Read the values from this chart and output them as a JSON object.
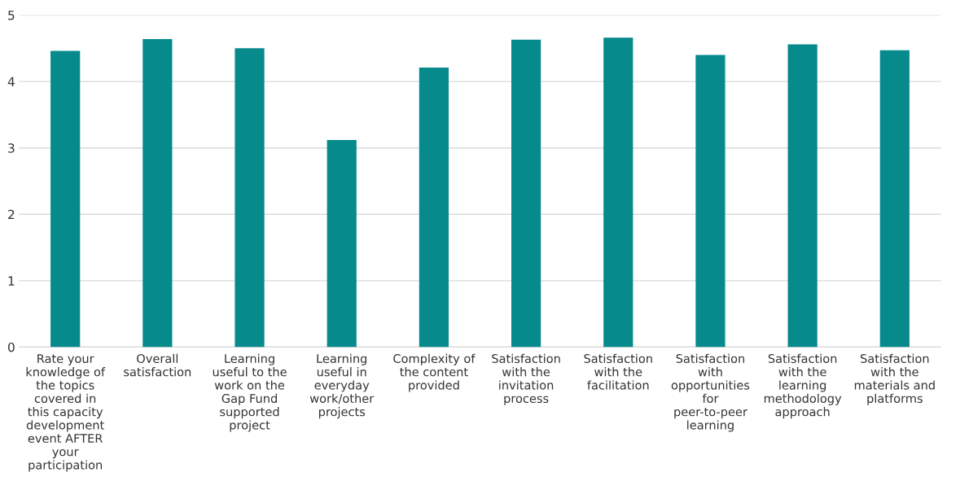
{
  "chart_data": {
    "type": "bar",
    "categories": [
      "Rate your knowledge of the topics covered in this capacity development event AFTER your participation",
      "Overall satisfaction",
      "Learning useful to the work on the Gap Fund supported project",
      "Learning useful in everyday work/other projects",
      "Complexity of the content provided",
      "Satisfaction with the invitation process",
      "Satisfaction with the facilitation",
      "Satisfaction with opportunities for peer-to-peer learning",
      "Satisfaction with the learning methodology approach",
      "Satisfaction with the materials and platforms"
    ],
    "values": [
      4.46,
      4.64,
      4.5,
      3.12,
      4.21,
      4.63,
      4.66,
      4.4,
      4.56,
      4.47
    ],
    "color": "#078a8c",
    "ylim": [
      0,
      5
    ],
    "yticks": [
      0,
      1,
      2,
      3,
      4,
      5
    ],
    "grid": "y",
    "legend": false
  }
}
